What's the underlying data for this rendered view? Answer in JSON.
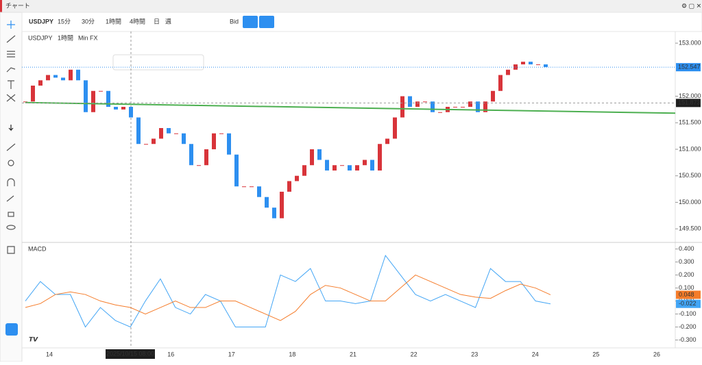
{
  "title_bar": {
    "title": "チャート"
  },
  "toolbar": {
    "symbol": "USDJPY",
    "intervals": [
      "15分",
      "30分",
      "1時間",
      "4時間",
      "日",
      "週"
    ],
    "active_interval": 2,
    "price_type": "Bid"
  },
  "legend": {
    "symbol": "USDJPY",
    "interval": "1時間",
    "source": "Min FX"
  },
  "price_chart": {
    "up_color": "#d8343a",
    "down_color": "#2d8ff0",
    "ylim": [
      149.27,
      153.22
    ],
    "yticks": [
      {
        "value": 153,
        "label": "153.000"
      },
      {
        "value": 152,
        "label": "152.000"
      },
      {
        "value": 151.5,
        "label": "151.500"
      },
      {
        "value": 151,
        "label": "151.000"
      },
      {
        "value": 150.5,
        "label": "150.500"
      },
      {
        "value": 150,
        "label": "150.000"
      },
      {
        "value": 149.5,
        "label": "149.500"
      }
    ],
    "closes": [
      151.9,
      152.2,
      152.3,
      152.4,
      152.35,
      152.3,
      152.5,
      152.3,
      151.7,
      152.1,
      152.1,
      151.8,
      151.75,
      151.8,
      151.6,
      151.1,
      151.1,
      151.2,
      151.4,
      151.3,
      151.3,
      151.1,
      150.7,
      150.7,
      151.0,
      151.3,
      151.3,
      150.9,
      150.3,
      150.3,
      150.3,
      150.1,
      149.9,
      149.7,
      150.2,
      150.4,
      150.5,
      150.7,
      151.0,
      150.8,
      150.6,
      150.7,
      150.7,
      150.6,
      150.7,
      150.8,
      150.6,
      151.1,
      151.2,
      151.6,
      152.0,
      151.8,
      151.9,
      151.9,
      151.7,
      151.7,
      151.8,
      151.8,
      151.8,
      151.9,
      151.7,
      151.9,
      152.1,
      152.4,
      152.5,
      152.6,
      152.65,
      152.6,
      152.6,
      152.55
    ],
    "trendline": {
      "color": "#4caf50",
      "values": [
        151.88,
        151.68
      ]
    },
    "last_price": {
      "value": 152.547,
      "label": "152.547",
      "color": "#2d8ff0"
    },
    "cursor_price": {
      "value": 151.873,
      "label": "151.873"
    }
  },
  "macd": {
    "title": "MACD",
    "ylim": [
      -0.35,
      0.44
    ],
    "yticks": [
      {
        "value": 0.4,
        "label": "0.400"
      },
      {
        "value": 0.3,
        "label": "0.300"
      },
      {
        "value": 0.2,
        "label": "0.200"
      },
      {
        "value": 0.1,
        "label": "0.100"
      },
      {
        "value": 0,
        "label": "0.000"
      },
      {
        "value": -0.1,
        "label": "-0.100"
      },
      {
        "value": -0.2,
        "label": "-0.200"
      },
      {
        "value": -0.3,
        "label": "-0.300"
      }
    ],
    "series": [
      {
        "name": "MACD",
        "color": "#42a5f5",
        "values": [
          0.0,
          0.15,
          0.05,
          0.05,
          -0.2,
          -0.05,
          -0.15,
          -0.2,
          0.0,
          0.17,
          -0.05,
          -0.1,
          0.05,
          0.0,
          -0.2,
          -0.2,
          -0.2,
          0.2,
          0.15,
          0.25,
          0.0,
          0.0,
          -0.02,
          0.0,
          0.35,
          0.2,
          0.05,
          0.0,
          0.05,
          0.0,
          -0.05,
          0.25,
          0.15,
          0.15,
          0.0,
          -0.022
        ],
        "badge": "-0.022"
      },
      {
        "name": "Signal",
        "color": "#f57c2a",
        "values": [
          -0.05,
          -0.02,
          0.05,
          0.07,
          0.05,
          0,
          -0.03,
          -0.05,
          -0.1,
          -0.05,
          0,
          -0.05,
          -0.05,
          0,
          0,
          -0.05,
          -0.1,
          -0.15,
          -0.08,
          0.05,
          0.12,
          0.1,
          0.05,
          0,
          0,
          0.1,
          0.2,
          0.15,
          0.1,
          0.05,
          0.03,
          0.02,
          0.08,
          0.13,
          0.1,
          0.048
        ],
        "badge": "0.048"
      }
    ]
  },
  "time_axis": {
    "days": [
      14,
      16,
      17,
      18,
      21,
      22,
      23,
      24,
      25,
      26
    ],
    "cursor_label": "2025/10/15  08:00"
  }
}
